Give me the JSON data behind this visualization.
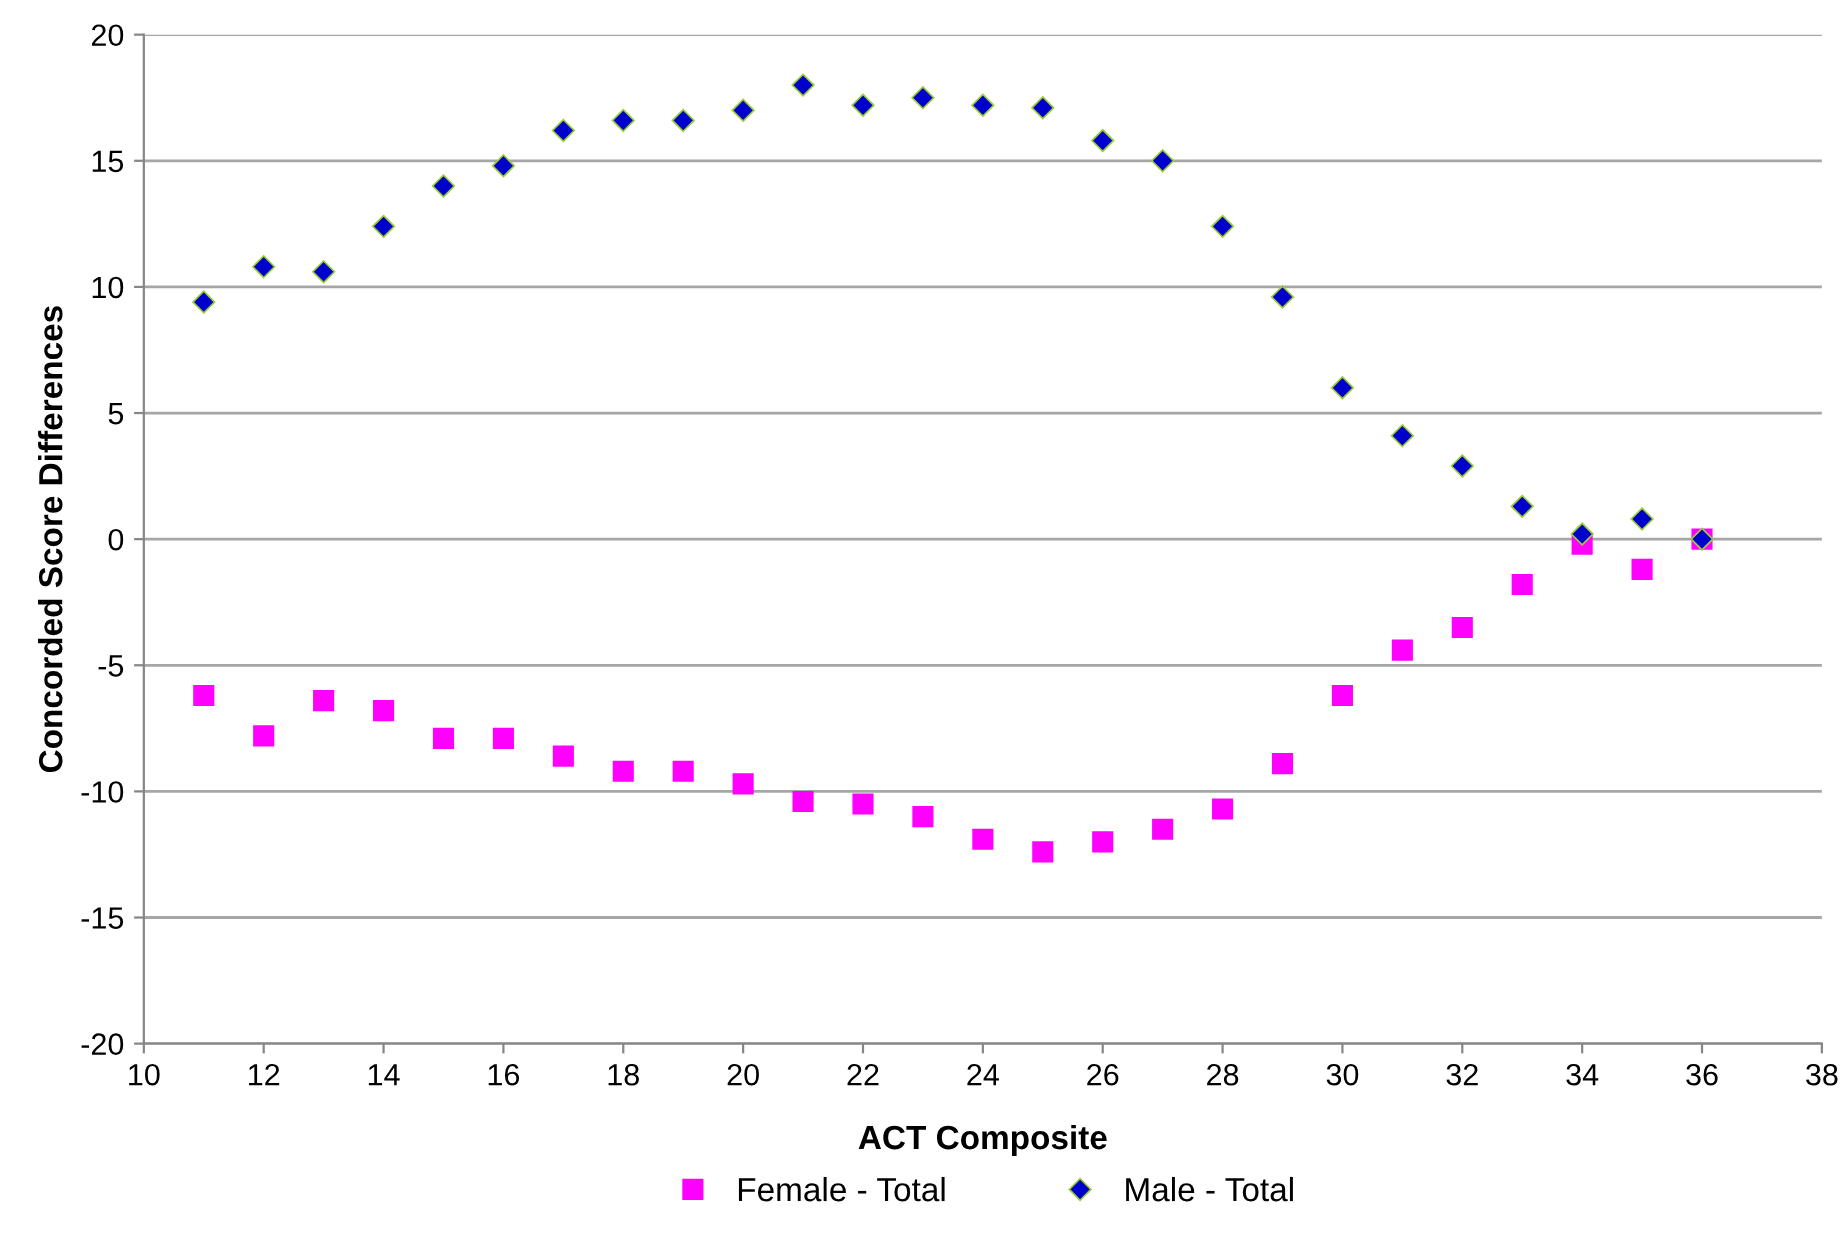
{
  "chart_data": {
    "type": "scatter",
    "xlabel": "ACT Composite",
    "ylabel": "Concorded Score Differences",
    "x": [
      11,
      12,
      13,
      14,
      15,
      16,
      17,
      18,
      19,
      20,
      21,
      22,
      23,
      24,
      25,
      26,
      27,
      28,
      29,
      30,
      31,
      32,
      33,
      34,
      35,
      36
    ],
    "series": [
      {
        "name": "Female - Total",
        "color": "#ff00ff",
        "marker": "square",
        "values": [
          -6.2,
          -7.8,
          -6.4,
          -6.8,
          -7.9,
          -7.9,
          -8.6,
          -9.2,
          -9.2,
          -9.7,
          -10.4,
          -10.5,
          -11.0,
          -11.9,
          -12.4,
          -12.0,
          -11.5,
          -10.7,
          -8.9,
          -6.2,
          -4.4,
          -3.5,
          -1.8,
          -0.2,
          -1.2,
          0.0
        ]
      },
      {
        "name": "Male - Total",
        "color": "#0000cc",
        "marker": "diamond",
        "values": [
          9.4,
          10.8,
          10.6,
          12.4,
          14.0,
          14.8,
          16.2,
          16.6,
          16.6,
          17.0,
          18.0,
          17.2,
          17.5,
          17.2,
          17.1,
          15.8,
          15.0,
          12.4,
          9.6,
          6.0,
          4.1,
          2.9,
          1.3,
          0.2,
          0.8,
          0.0
        ]
      }
    ],
    "xlim": [
      10,
      38
    ],
    "xticks": [
      10,
      12,
      14,
      16,
      18,
      20,
      22,
      24,
      26,
      28,
      30,
      32,
      34,
      36,
      38
    ],
    "ylim": [
      -20,
      20
    ],
    "yticks": [
      -20,
      -15,
      -10,
      -5,
      0,
      5,
      10,
      15,
      20
    ],
    "grid": "y",
    "legend": "bottom"
  }
}
